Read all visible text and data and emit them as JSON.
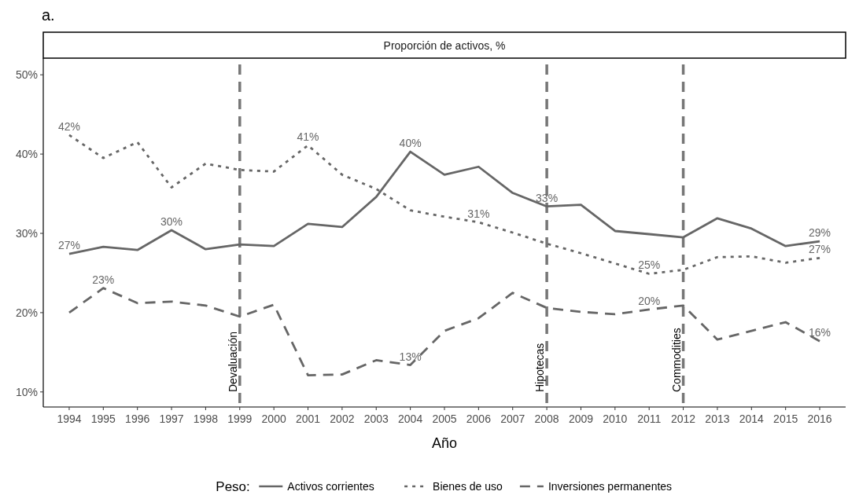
{
  "chart_data": {
    "type": "line",
    "title": "a.",
    "subtitle": "Proporción de activos, %",
    "xlabel": "Año",
    "legend_title": "Peso:",
    "legend": "bottom",
    "grid": false,
    "categories": [
      "1994",
      "1995",
      "1996",
      "1997",
      "1998",
      "1999",
      "2000",
      "2001",
      "2002",
      "2003",
      "2004",
      "2005",
      "2006",
      "2007",
      "2008",
      "2009",
      "2010",
      "2011",
      "2012",
      "2013",
      "2014",
      "2015",
      "2016"
    ],
    "ylim": [
      8.1,
      52.1
    ],
    "yticks": [
      {
        "value": 10,
        "label": "10%"
      },
      {
        "value": 20,
        "label": "20%"
      },
      {
        "value": 30,
        "label": "30%"
      },
      {
        "value": 40,
        "label": "40%"
      },
      {
        "value": 50,
        "label": "50%"
      }
    ],
    "series": [
      {
        "name": "Activos corrientes",
        "color": "#666666",
        "line_style": "solid",
        "values": [
          27.4,
          28.3,
          27.9,
          30.4,
          28.0,
          28.6,
          28.4,
          31.2,
          30.8,
          34.6,
          40.3,
          37.4,
          38.4,
          35.1,
          33.4,
          33.6,
          30.3,
          29.9,
          29.5,
          31.9,
          30.6,
          28.4,
          29.0
        ]
      },
      {
        "name": "Bienes de uso",
        "color": "#666666",
        "line_style": "dotted",
        "values": [
          42.4,
          39.5,
          41.5,
          35.8,
          38.8,
          38.0,
          37.8,
          41.1,
          37.4,
          35.6,
          32.9,
          32.1,
          31.4,
          30.1,
          28.7,
          27.5,
          26.2,
          24.9,
          25.4,
          27.0,
          27.1,
          26.3,
          26.9
        ]
      },
      {
        "name": "Inversiones permanentes",
        "color": "#666666",
        "line_style": "dashed",
        "values": [
          20.0,
          23.1,
          21.2,
          21.4,
          20.9,
          19.5,
          21.0,
          12.1,
          12.2,
          14.0,
          13.4,
          17.7,
          19.3,
          22.5,
          20.6,
          20.1,
          19.8,
          20.4,
          20.9,
          16.6,
          17.7,
          18.8,
          16.4
        ]
      }
    ],
    "ref_lines": [
      {
        "axis": "x",
        "value": "1999",
        "label": "Devaluación",
        "color": "#777777",
        "line_style": "dashed"
      },
      {
        "axis": "x",
        "value": "2008",
        "label": "Hipotecas",
        "color": "#777777",
        "line_style": "dashed"
      },
      {
        "axis": "x",
        "value": "2012",
        "label": "Commodities",
        "color": "#777777",
        "line_style": "dashed"
      }
    ],
    "annotations": [
      {
        "text": "27%",
        "x": "1994",
        "y": 27.4
      },
      {
        "text": "30%",
        "x": "1997",
        "y": 30.4
      },
      {
        "text": "40%",
        "x": "2004",
        "y": 40.3
      },
      {
        "text": "33%",
        "x": "2008",
        "y": 33.4
      },
      {
        "text": "29%",
        "x": "2016",
        "y": 29.0
      },
      {
        "text": "42%",
        "x": "1994",
        "y": 42.4
      },
      {
        "text": "41%",
        "x": "2001",
        "y": 41.1
      },
      {
        "text": "31%",
        "x": "2006",
        "y": 31.4
      },
      {
        "text": "25%",
        "x": "2011",
        "y": 24.9
      },
      {
        "text": "27%",
        "x": "2016",
        "y": 26.9
      },
      {
        "text": "23%",
        "x": "1995",
        "y": 23.1
      },
      {
        "text": "13%",
        "x": "2004",
        "y": 13.4
      },
      {
        "text": "20%",
        "x": "2011",
        "y": 20.4
      },
      {
        "text": "16%",
        "x": "2016",
        "y": 16.4
      }
    ]
  }
}
